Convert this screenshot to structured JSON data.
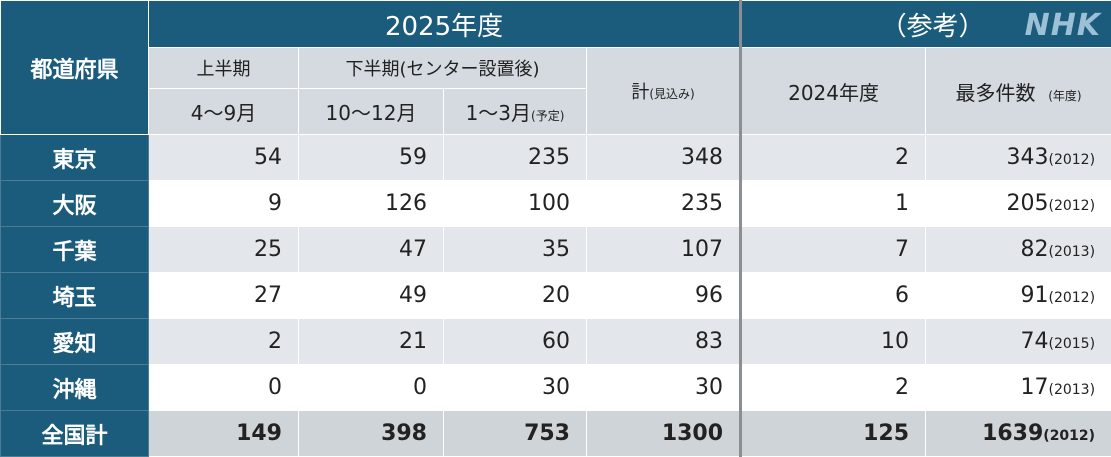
{
  "header": {
    "fiscal_2025": "2025年度",
    "reference": "（参考）",
    "logo": "NHK",
    "prefecture": "都道府県",
    "first_half": "上半期",
    "second_half": "下半期(センター設置後)",
    "apr_sep": "4〜9月",
    "oct_dec": "10〜12月",
    "jan_mar": "1〜3月",
    "jan_mar_note": "(予定)",
    "total": "計",
    "total_note": "(見込み)",
    "fiscal_2024": "2024年度",
    "max_count": "最多件数",
    "max_count_note": "(年度)"
  },
  "rows": [
    {
      "prefecture": "東京",
      "cells": [
        54,
        59,
        235,
        348,
        2
      ],
      "max": 343,
      "max_year": "(2012)"
    },
    {
      "prefecture": "大阪",
      "cells": [
        9,
        126,
        100,
        235,
        1
      ],
      "max": 205,
      "max_year": "(2012)"
    },
    {
      "prefecture": "千葉",
      "cells": [
        25,
        47,
        35,
        107,
        7
      ],
      "max": 82,
      "max_year": "(2013)"
    },
    {
      "prefecture": "埼玉",
      "cells": [
        27,
        49,
        20,
        96,
        6
      ],
      "max": 91,
      "max_year": "(2012)"
    },
    {
      "prefecture": "愛知",
      "cells": [
        2,
        21,
        60,
        83,
        10
      ],
      "max": 74,
      "max_year": "(2015)"
    },
    {
      "prefecture": "沖縄",
      "cells": [
        0,
        0,
        30,
        30,
        2
      ],
      "max": 17,
      "max_year": "(2013)"
    },
    {
      "prefecture": "全国計",
      "cells": [
        149,
        398,
        753,
        1300,
        125
      ],
      "max": 1639,
      "max_year": "(2012)"
    }
  ]
}
